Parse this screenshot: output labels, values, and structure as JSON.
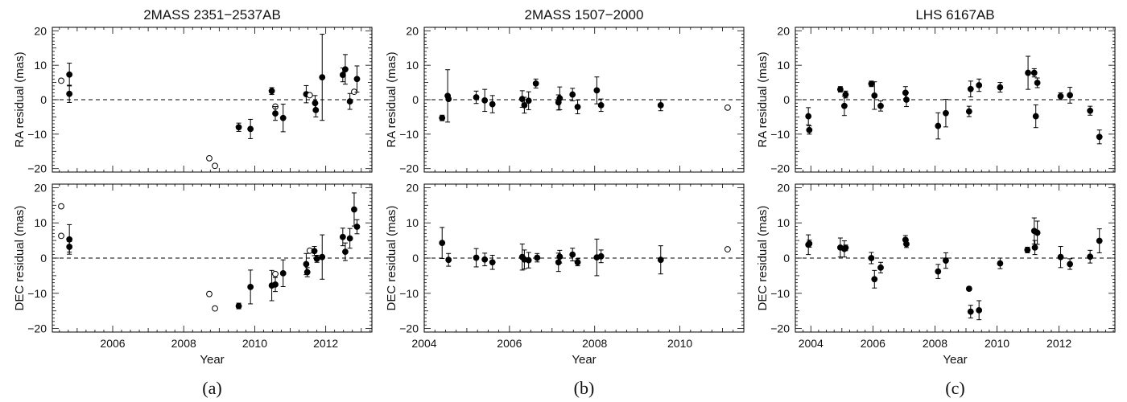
{
  "chart_data": [
    {
      "type": "scatter",
      "caption": "(a)",
      "title": "2MASS 2351−2537AB",
      "xlabel": "Year",
      "xlim": [
        2004.3,
        2013.3
      ],
      "xticks": [
        2006,
        2008,
        2010,
        2012
      ],
      "panels": [
        {
          "ylabel": "RA residual (mas)",
          "ylim": [
            -21,
            21
          ],
          "yticks": [
            -20,
            -10,
            0,
            10,
            20
          ],
          "points": [
            {
              "x": 2004.55,
              "y": 5.5,
              "err": 0,
              "open": true
            },
            {
              "x": 2004.78,
              "y": 7.3,
              "err": 3.3,
              "open": false
            },
            {
              "x": 2004.78,
              "y": 1.7,
              "err": 2.5,
              "open": false
            },
            {
              "x": 2008.72,
              "y": -17.0,
              "err": 0,
              "open": true
            },
            {
              "x": 2008.88,
              "y": -19.2,
              "err": 0,
              "open": true
            },
            {
              "x": 2009.55,
              "y": -8.0,
              "err": 1.2,
              "open": false
            },
            {
              "x": 2009.88,
              "y": -8.5,
              "err": 2.8,
              "open": false
            },
            {
              "x": 2010.48,
              "y": 2.5,
              "err": 1.0,
              "open": false
            },
            {
              "x": 2010.58,
              "y": -2.0,
              "err": 0,
              "open": true
            },
            {
              "x": 2010.58,
              "y": -4.0,
              "err": 2.0,
              "open": false
            },
            {
              "x": 2010.8,
              "y": -5.3,
              "err": 4.0,
              "open": false
            },
            {
              "x": 2011.45,
              "y": 1.6,
              "err": 2.5,
              "open": false
            },
            {
              "x": 2011.55,
              "y": 1.3,
              "err": 0,
              "open": true
            },
            {
              "x": 2011.7,
              "y": -1.0,
              "err": 2.2,
              "open": false
            },
            {
              "x": 2011.72,
              "y": -3.0,
              "err": 2.0,
              "open": false
            },
            {
              "x": 2011.9,
              "y": 6.5,
              "err": 12.5,
              "open": false
            },
            {
              "x": 2012.48,
              "y": 7.2,
              "err": 2.0,
              "open": false
            },
            {
              "x": 2012.55,
              "y": 8.8,
              "err": 4.3,
              "open": false
            },
            {
              "x": 2012.68,
              "y": -0.5,
              "err": 2.3,
              "open": false
            },
            {
              "x": 2012.8,
              "y": 2.3,
              "err": 0,
              "open": true
            },
            {
              "x": 2012.88,
              "y": 6.0,
              "err": 3.8,
              "open": false
            }
          ]
        },
        {
          "ylabel": "DEC residual (mas)",
          "ylim": [
            -21,
            21
          ],
          "yticks": [
            -20,
            -10,
            0,
            10,
            20
          ],
          "points": [
            {
              "x": 2004.55,
              "y": 14.7,
              "err": 0,
              "open": true
            },
            {
              "x": 2004.55,
              "y": 6.3,
              "err": 0,
              "open": true
            },
            {
              "x": 2004.78,
              "y": 5.3,
              "err": 4.2,
              "open": false
            },
            {
              "x": 2004.78,
              "y": 3.2,
              "err": 1.5,
              "open": false
            },
            {
              "x": 2008.72,
              "y": -10.2,
              "err": 0,
              "open": true
            },
            {
              "x": 2008.88,
              "y": -14.3,
              "err": 0,
              "open": true
            },
            {
              "x": 2009.55,
              "y": -13.6,
              "err": 0.8,
              "open": false
            },
            {
              "x": 2009.88,
              "y": -8.2,
              "err": 4.8,
              "open": false
            },
            {
              "x": 2010.48,
              "y": -7.8,
              "err": 4.3,
              "open": false
            },
            {
              "x": 2010.58,
              "y": -4.5,
              "err": 0,
              "open": true
            },
            {
              "x": 2010.58,
              "y": -7.5,
              "err": 2.0,
              "open": false
            },
            {
              "x": 2010.8,
              "y": -4.3,
              "err": 3.8,
              "open": false
            },
            {
              "x": 2011.45,
              "y": -1.7,
              "err": 3.0,
              "open": false
            },
            {
              "x": 2011.48,
              "y": -4.0,
              "err": 1.3,
              "open": false
            },
            {
              "x": 2011.55,
              "y": 2.1,
              "err": 0,
              "open": true
            },
            {
              "x": 2011.68,
              "y": 2.0,
              "err": 1.3,
              "open": false
            },
            {
              "x": 2011.75,
              "y": -0.2,
              "err": 1.0,
              "open": false
            },
            {
              "x": 2011.9,
              "y": 0.3,
              "err": 6.3,
              "open": false
            },
            {
              "x": 2012.48,
              "y": 6.0,
              "err": 2.5,
              "open": false
            },
            {
              "x": 2012.55,
              "y": 1.8,
              "err": 2.5,
              "open": false
            },
            {
              "x": 2012.68,
              "y": 5.6,
              "err": 2.8,
              "open": false
            },
            {
              "x": 2012.8,
              "y": 13.8,
              "err": 4.7,
              "open": false
            },
            {
              "x": 2012.88,
              "y": 8.9,
              "err": 2.0,
              "open": false
            }
          ]
        }
      ]
    },
    {
      "type": "scatter",
      "caption": "(b)",
      "title": "2MASS 1507−2000",
      "xlabel": "Year",
      "xlim": [
        2004.0,
        2011.5
      ],
      "xticks": [
        2004,
        2006,
        2008,
        2010
      ],
      "panels": [
        {
          "ylabel": "RA residual (mas)",
          "ylim": [
            -21,
            21
          ],
          "yticks": [
            -20,
            -10,
            0,
            10,
            20
          ],
          "points": [
            {
              "x": 2004.42,
              "y": -5.3,
              "err": 0.8,
              "open": false
            },
            {
              "x": 2004.55,
              "y": 1.1,
              "err": 7.6,
              "open": false
            },
            {
              "x": 2004.57,
              "y": 0.2,
              "err": 0,
              "open": false
            },
            {
              "x": 2005.22,
              "y": 0.7,
              "err": 1.8,
              "open": false
            },
            {
              "x": 2005.42,
              "y": -0.2,
              "err": 3.2,
              "open": false
            },
            {
              "x": 2005.6,
              "y": -1.3,
              "err": 2.5,
              "open": false
            },
            {
              "x": 2006.3,
              "y": 0.2,
              "err": 2.4,
              "open": false
            },
            {
              "x": 2006.35,
              "y": -1.6,
              "err": 2.3,
              "open": false
            },
            {
              "x": 2006.45,
              "y": -0.3,
              "err": 2.6,
              "open": false
            },
            {
              "x": 2006.62,
              "y": 4.7,
              "err": 1.3,
              "open": false
            },
            {
              "x": 2007.15,
              "y": -0.8,
              "err": 2.2,
              "open": false
            },
            {
              "x": 2007.18,
              "y": 0.4,
              "err": 3.3,
              "open": false
            },
            {
              "x": 2007.48,
              "y": 1.5,
              "err": 1.8,
              "open": false
            },
            {
              "x": 2007.6,
              "y": -2.1,
              "err": 2.0,
              "open": false
            },
            {
              "x": 2008.05,
              "y": 2.7,
              "err": 3.9,
              "open": false
            },
            {
              "x": 2008.15,
              "y": -1.6,
              "err": 1.8,
              "open": false
            },
            {
              "x": 2009.55,
              "y": -1.6,
              "err": 1.6,
              "open": false
            },
            {
              "x": 2011.12,
              "y": -2.3,
              "err": 0,
              "open": true
            }
          ]
        },
        {
          "ylabel": "DEC residual (mas)",
          "ylim": [
            -21,
            21
          ],
          "yticks": [
            -20,
            -10,
            0,
            10,
            20
          ],
          "points": [
            {
              "x": 2004.42,
              "y": 4.3,
              "err": 4.4,
              "open": false
            },
            {
              "x": 2004.57,
              "y": -0.5,
              "err": 1.8,
              "open": false
            },
            {
              "x": 2005.22,
              "y": 0.1,
              "err": 2.6,
              "open": false
            },
            {
              "x": 2005.42,
              "y": -0.4,
              "err": 1.8,
              "open": false
            },
            {
              "x": 2005.6,
              "y": -1.2,
              "err": 2.0,
              "open": false
            },
            {
              "x": 2006.3,
              "y": 0.3,
              "err": 3.7,
              "open": false
            },
            {
              "x": 2006.35,
              "y": -0.4,
              "err": 2.7,
              "open": false
            },
            {
              "x": 2006.45,
              "y": -0.6,
              "err": 2.2,
              "open": false
            },
            {
              "x": 2006.65,
              "y": 0.1,
              "err": 1.2,
              "open": false
            },
            {
              "x": 2007.15,
              "y": -1.2,
              "err": 2.6,
              "open": false
            },
            {
              "x": 2007.18,
              "y": 0.4,
              "err": 1.8,
              "open": false
            },
            {
              "x": 2007.48,
              "y": 1.0,
              "err": 1.8,
              "open": false
            },
            {
              "x": 2007.6,
              "y": -1.2,
              "err": 1.0,
              "open": false
            },
            {
              "x": 2008.05,
              "y": 0.2,
              "err": 5.2,
              "open": false
            },
            {
              "x": 2008.15,
              "y": 0.5,
              "err": 1.8,
              "open": false
            },
            {
              "x": 2009.55,
              "y": -0.5,
              "err": 4.0,
              "open": false
            },
            {
              "x": 2011.12,
              "y": 2.5,
              "err": 0,
              "open": true
            }
          ]
        }
      ]
    },
    {
      "type": "scatter",
      "caption": "(c)",
      "title": "LHS 6167AB",
      "xlabel": "Year",
      "xlim": [
        2003.5,
        2013.8
      ],
      "xticks": [
        2004,
        2006,
        2008,
        2010,
        2012
      ],
      "panels": [
        {
          "ylabel": "RA residual (mas)",
          "ylim": [
            -21,
            21
          ],
          "yticks": [
            -20,
            -10,
            0,
            10,
            20
          ],
          "points": [
            {
              "x": 2003.92,
              "y": -4.8,
              "err": 2.5,
              "open": false
            },
            {
              "x": 2003.95,
              "y": -8.8,
              "err": 1.2,
              "open": false
            },
            {
              "x": 2004.95,
              "y": 3.0,
              "err": 0.8,
              "open": false
            },
            {
              "x": 2005.08,
              "y": -1.8,
              "err": 2.8,
              "open": false
            },
            {
              "x": 2005.12,
              "y": 1.5,
              "err": 1.0,
              "open": false
            },
            {
              "x": 2005.95,
              "y": 4.6,
              "err": 0.8,
              "open": false
            },
            {
              "x": 2006.05,
              "y": 1.2,
              "err": 4.0,
              "open": false
            },
            {
              "x": 2006.25,
              "y": -1.8,
              "err": 1.5,
              "open": false
            },
            {
              "x": 2007.05,
              "y": 2.0,
              "err": 1.8,
              "open": false
            },
            {
              "x": 2007.08,
              "y": 0.0,
              "err": 2.0,
              "open": false
            },
            {
              "x": 2008.1,
              "y": -7.6,
              "err": 3.8,
              "open": false
            },
            {
              "x": 2008.35,
              "y": -3.9,
              "err": 4.0,
              "open": false
            },
            {
              "x": 2009.1,
              "y": -3.4,
              "err": 1.5,
              "open": false
            },
            {
              "x": 2009.15,
              "y": 3.1,
              "err": 2.3,
              "open": false
            },
            {
              "x": 2009.42,
              "y": 4.2,
              "err": 1.8,
              "open": false
            },
            {
              "x": 2010.1,
              "y": 3.6,
              "err": 1.4,
              "open": false
            },
            {
              "x": 2011.0,
              "y": 7.8,
              "err": 4.8,
              "open": false
            },
            {
              "x": 2011.2,
              "y": 7.8,
              "err": 1.2,
              "open": false
            },
            {
              "x": 2011.25,
              "y": -4.8,
              "err": 3.3,
              "open": false
            },
            {
              "x": 2011.3,
              "y": 4.9,
              "err": 1.4,
              "open": false
            },
            {
              "x": 2012.05,
              "y": 1.0,
              "err": 1.0,
              "open": false
            },
            {
              "x": 2012.35,
              "y": 1.3,
              "err": 2.3,
              "open": false
            },
            {
              "x": 2013.0,
              "y": -3.2,
              "err": 1.3,
              "open": false
            },
            {
              "x": 2013.3,
              "y": -10.8,
              "err": 2.0,
              "open": false
            }
          ]
        },
        {
          "ylabel": "DEC residual (mas)",
          "ylim": [
            -21,
            21
          ],
          "yticks": [
            -20,
            -10,
            0,
            10,
            20
          ],
          "points": [
            {
              "x": 2003.92,
              "y": 3.8,
              "err": 2.8,
              "open": false
            },
            {
              "x": 2003.95,
              "y": 4.1,
              "err": 1.0,
              "open": false
            },
            {
              "x": 2004.95,
              "y": 3.0,
              "err": 2.7,
              "open": false
            },
            {
              "x": 2005.08,
              "y": 2.6,
              "err": 2.3,
              "open": false
            },
            {
              "x": 2005.12,
              "y": 2.9,
              "err": 0.8,
              "open": false
            },
            {
              "x": 2005.95,
              "y": 0.0,
              "err": 1.6,
              "open": false
            },
            {
              "x": 2006.05,
              "y": -6.0,
              "err": 2.5,
              "open": false
            },
            {
              "x": 2006.25,
              "y": -2.7,
              "err": 1.5,
              "open": false
            },
            {
              "x": 2007.05,
              "y": 5.2,
              "err": 1.2,
              "open": false
            },
            {
              "x": 2007.08,
              "y": 4.0,
              "err": 1.0,
              "open": false
            },
            {
              "x": 2008.1,
              "y": -3.8,
              "err": 2.0,
              "open": false
            },
            {
              "x": 2008.35,
              "y": -0.7,
              "err": 2.2,
              "open": false
            },
            {
              "x": 2009.1,
              "y": -8.7,
              "err": 0.5,
              "open": false
            },
            {
              "x": 2009.15,
              "y": -15.2,
              "err": 1.8,
              "open": false
            },
            {
              "x": 2009.42,
              "y": -14.8,
              "err": 2.7,
              "open": false
            },
            {
              "x": 2010.1,
              "y": -1.5,
              "err": 1.5,
              "open": false
            },
            {
              "x": 2010.98,
              "y": 2.3,
              "err": 0.8,
              "open": false
            },
            {
              "x": 2011.2,
              "y": 7.7,
              "err": 3.7,
              "open": false
            },
            {
              "x": 2011.22,
              "y": 3.0,
              "err": 2.0,
              "open": false
            },
            {
              "x": 2011.3,
              "y": 7.2,
              "err": 3.3,
              "open": false
            },
            {
              "x": 2012.05,
              "y": 0.3,
              "err": 3.0,
              "open": false
            },
            {
              "x": 2012.35,
              "y": -1.7,
              "err": 1.5,
              "open": false
            },
            {
              "x": 2013.0,
              "y": 0.4,
              "err": 1.8,
              "open": false
            },
            {
              "x": 2013.3,
              "y": 4.9,
              "err": 3.4,
              "open": false
            }
          ]
        }
      ]
    }
  ]
}
